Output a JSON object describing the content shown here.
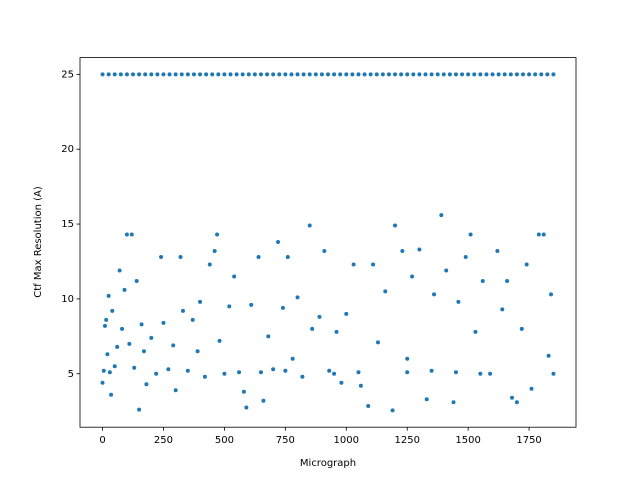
{
  "chart_data": {
    "type": "scatter",
    "xlabel": "Micrograph",
    "ylabel": "Ctf Max Resolution (A)",
    "color": "#1f77b4",
    "x": [
      0,
      5,
      10,
      15,
      20,
      25,
      30,
      35,
      40,
      50,
      60,
      70,
      80,
      90,
      100,
      110,
      120,
      130,
      140,
      150,
      160,
      170,
      180,
      200,
      220,
      240,
      250,
      270,
      290,
      300,
      320,
      330,
      350,
      370,
      390,
      400,
      420,
      440,
      460,
      470,
      480,
      500,
      520,
      540,
      560,
      580,
      590,
      610,
      640,
      660,
      680,
      700,
      720,
      740,
      760,
      780,
      800,
      820,
      850,
      860,
      890,
      910,
      930,
      960,
      980,
      1000,
      1030,
      1060,
      1090,
      1110,
      1130,
      1160,
      1190,
      1200,
      1230,
      1250,
      1270,
      1300,
      1330,
      1360,
      1390,
      1410,
      1440,
      1460,
      1490,
      1510,
      1530,
      1560,
      1590,
      1620,
      1640,
      1660,
      1680,
      1700,
      1720,
      1740,
      1760,
      1790,
      1810,
      1830,
      1840,
      1850,
      1250,
      1350,
      1450,
      1550,
      650,
      750,
      950,
      1050,
      0,
      25,
      50,
      75,
      100,
      125,
      150,
      175,
      200,
      225,
      250,
      275,
      300,
      325,
      350,
      375,
      400,
      425,
      450,
      475,
      500,
      525,
      550,
      575,
      600,
      625,
      650,
      675,
      700,
      725,
      750,
      775,
      800,
      825,
      850,
      875,
      900,
      925,
      950,
      975,
      1000,
      1025,
      1050,
      1075,
      1100,
      1125,
      1150,
      1175,
      1200,
      1225,
      1250,
      1275,
      1300,
      1325,
      1350,
      1375,
      1400,
      1425,
      1450,
      1475,
      1500,
      1525,
      1550,
      1575,
      1600,
      1625,
      1650,
      1675,
      1700,
      1725,
      1750,
      1775,
      1800,
      1825,
      1850
    ],
    "values": [
      4.4,
      5.2,
      8.2,
      8.6,
      6.3,
      10.2,
      5.1,
      3.6,
      9.2,
      5.5,
      6.8,
      11.9,
      8.0,
      10.6,
      14.3,
      7.0,
      14.3,
      5.4,
      11.2,
      2.6,
      8.3,
      6.5,
      4.3,
      7.4,
      5.0,
      12.8,
      8.4,
      5.3,
      6.9,
      3.9,
      12.8,
      9.2,
      5.2,
      8.6,
      6.5,
      9.8,
      4.8,
      12.3,
      13.2,
      14.3,
      7.2,
      5.0,
      9.5,
      11.5,
      5.1,
      3.8,
      2.75,
      9.6,
      12.8,
      3.2,
      7.5,
      5.3,
      13.8,
      9.4,
      12.8,
      6.0,
      10.1,
      4.8,
      14.9,
      8.0,
      8.8,
      13.2,
      5.2,
      7.8,
      4.4,
      9.0,
      12.3,
      4.2,
      2.85,
      12.3,
      7.1,
      10.5,
      2.55,
      14.9,
      13.2,
      6.0,
      11.5,
      13.3,
      3.3,
      10.3,
      15.6,
      11.9,
      3.1,
      9.8,
      12.8,
      14.3,
      7.8,
      11.2,
      5.0,
      13.2,
      9.3,
      11.2,
      3.4,
      3.1,
      8.0,
      12.3,
      4.0,
      14.3,
      14.3,
      6.2,
      10.3,
      5.0,
      5.1,
      5.2,
      5.1,
      5.0,
      5.1,
      5.2,
      5.0,
      5.1,
      25,
      25,
      25,
      25,
      25,
      25,
      25,
      25,
      25,
      25,
      25,
      25,
      25,
      25,
      25,
      25,
      25,
      25,
      25,
      25,
      25,
      25,
      25,
      25,
      25,
      25,
      25,
      25,
      25,
      25,
      25,
      25,
      25,
      25,
      25,
      25,
      25,
      25,
      25,
      25,
      25,
      25,
      25,
      25,
      25,
      25,
      25,
      25,
      25,
      25,
      25,
      25,
      25,
      25,
      25,
      25,
      25,
      25,
      25,
      25,
      25,
      25,
      25,
      25,
      25,
      25,
      25,
      25,
      25,
      25,
      25,
      25,
      25,
      25,
      25
    ],
    "xlim": [
      -92.5,
      1942.5
    ],
    "ylim": [
      1.43,
      26.12
    ],
    "xticks": [
      0,
      250,
      500,
      750,
      1000,
      1250,
      1500,
      1750
    ],
    "yticks": [
      5,
      10,
      15,
      20,
      25
    ]
  }
}
